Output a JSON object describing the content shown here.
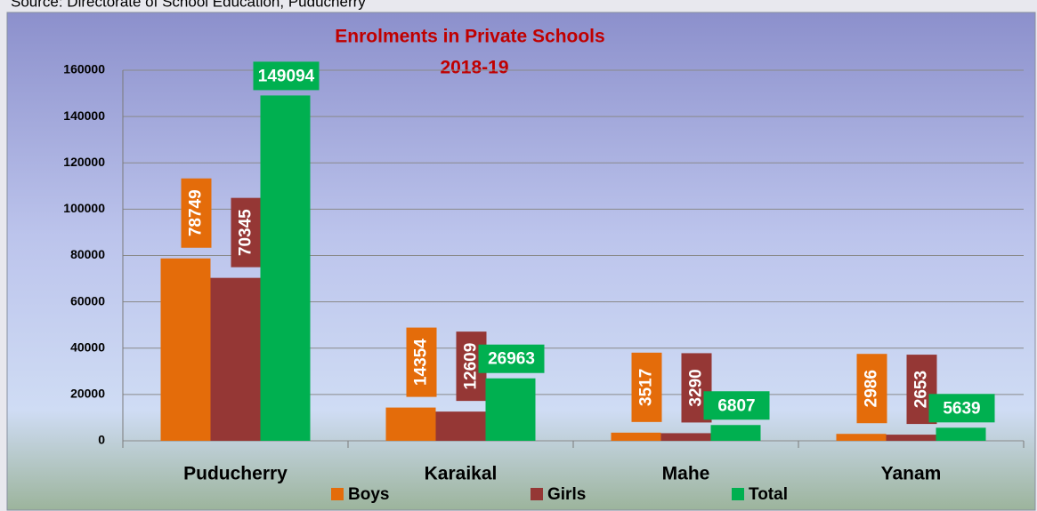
{
  "source": "Source: Directorate of School Education, Puducherry",
  "chart_data": {
    "type": "bar",
    "title": "Enrolments in Private Schools",
    "subtitle": "2018-19",
    "categories": [
      "Puducherry",
      "Karaikal",
      "Mahe",
      "Yanam"
    ],
    "series": [
      {
        "name": "Boys",
        "color": "#e46c0a",
        "values": [
          78749,
          14354,
          3517,
          2986
        ]
      },
      {
        "name": "Girls",
        "color": "#953735",
        "values": [
          70345,
          12609,
          3290,
          2653
        ]
      },
      {
        "name": "Total",
        "color": "#00b050",
        "values": [
          149094,
          26963,
          6807,
          5639
        ]
      }
    ],
    "ylim": [
      0,
      160000
    ],
    "yticks": [
      0,
      20000,
      40000,
      60000,
      80000,
      100000,
      120000,
      140000,
      160000
    ],
    "grid": true,
    "legend": "bottom"
  }
}
